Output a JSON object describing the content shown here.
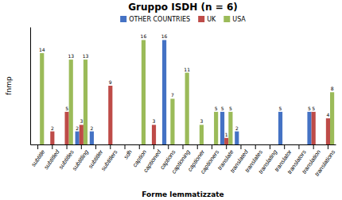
{
  "chart_data": {
    "type": "bar",
    "title": "Gruppo ISDH (n = 6)",
    "xlabel": "Forme lemmatizzate",
    "ylabel": "fnmp",
    "categories": [
      "subtitle",
      "subtitled",
      "subtitles",
      "subtitling",
      "subtitler",
      "subtitlers",
      "sdh",
      "caption",
      "captioned",
      "captions",
      "captioning",
      "captioner",
      "captioners",
      "translate",
      "translated",
      "translates",
      "translating",
      "translator",
      "translators",
      "translation",
      "translations"
    ],
    "series": [
      {
        "name": "OTHER COUNTRIES",
        "color": "#4472C4",
        "values": [
          0,
          0,
          0,
          2,
          2,
          0,
          0,
          0,
          0,
          16,
          0,
          0,
          0,
          5,
          2,
          0,
          0,
          5,
          0,
          5,
          0
        ]
      },
      {
        "name": "UK",
        "color": "#BE4B48",
        "values": [
          0,
          2,
          5,
          3,
          0,
          9,
          0,
          0,
          3,
          0,
          0,
          0,
          0,
          1,
          0,
          0,
          0,
          0,
          0,
          5,
          4
        ]
      },
      {
        "name": "USA",
        "color": "#9BBB59",
        "values": [
          14,
          0,
          13,
          13,
          0,
          0,
          0,
          16,
          0,
          7,
          11,
          3,
          5,
          5,
          0,
          0,
          0,
          0,
          0,
          0,
          8
        ]
      }
    ],
    "ylim": [
      0,
      18
    ],
    "yticks": [],
    "tick_labels": "x",
    "data_labels": true,
    "legend": "top"
  }
}
